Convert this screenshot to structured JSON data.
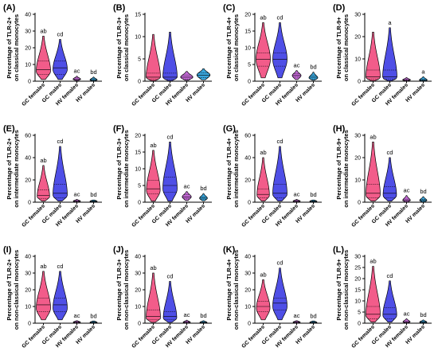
{
  "colors": {
    "GC females": "#f25c8a",
    "GC males": "#4f4fe6",
    "HV females": "#c46ad6",
    "HV males": "#3aa6dc"
  },
  "chart_data": [
    {
      "label": "(A)",
      "type": "violin",
      "ylabel_lines": [
        "Percentage of TLR-2+",
        "on classical monocytes"
      ],
      "categories": [
        "GC females",
        "GC males",
        "HV females",
        "HV males"
      ],
      "ylim": [
        0,
        40
      ],
      "yticks": [
        0,
        10,
        20,
        30,
        40
      ],
      "series": [
        {
          "category": "GC females",
          "min": 1,
          "q1": 4,
          "median": 7,
          "q3": 12,
          "max": 27,
          "mode": 6,
          "annotation": "ab"
        },
        {
          "category": "GC males",
          "min": 1,
          "q1": 4,
          "median": 8,
          "q3": 12,
          "max": 25,
          "mode": 7,
          "annotation": "cd"
        },
        {
          "category": "HV females",
          "min": 0.3,
          "q1": 0.7,
          "median": 1.2,
          "q3": 2,
          "max": 3,
          "mode": 1.2,
          "annotation": "ac"
        },
        {
          "category": "HV males",
          "min": 0.2,
          "q1": 0.5,
          "median": 0.9,
          "q3": 1.5,
          "max": 2.5,
          "mode": 0.8,
          "annotation": "bd"
        }
      ]
    },
    {
      "label": "(B)",
      "type": "violin",
      "ylabel_lines": [
        "Percentage of TLR-3+",
        "on classical monocytes"
      ],
      "categories": [
        "GC females",
        "GC males",
        "HV females",
        "HV males"
      ],
      "ylim": [
        0,
        15
      ],
      "yticks": [
        0,
        5,
        10,
        15
      ],
      "series": [
        {
          "category": "GC females",
          "min": 0.1,
          "q1": 0.4,
          "median": 0.9,
          "q3": 1.8,
          "max": 10.5,
          "mode": 0.8,
          "annotation": ""
        },
        {
          "category": "GC males",
          "min": 0.1,
          "q1": 0.4,
          "median": 0.9,
          "q3": 1.8,
          "max": 11,
          "mode": 0.8,
          "annotation": ""
        },
        {
          "category": "HV females",
          "min": 0.2,
          "q1": 0.5,
          "median": 0.9,
          "q3": 1.4,
          "max": 2.2,
          "mode": 0.9,
          "annotation": ""
        },
        {
          "category": "HV males",
          "min": 0.3,
          "q1": 0.8,
          "median": 1.3,
          "q3": 1.9,
          "max": 2.8,
          "mode": 1.4,
          "annotation": ""
        }
      ]
    },
    {
      "label": "(C)",
      "type": "violin",
      "ylabel_lines": [
        "Percentage of TLR-4+",
        "on classical monocytes"
      ],
      "categories": [
        "GC females",
        "GC males",
        "HV females",
        "HV males"
      ],
      "ylim": [
        0,
        20
      ],
      "yticks": [
        0,
        5,
        10,
        15,
        20
      ],
      "series": [
        {
          "category": "GC females",
          "min": 1,
          "q1": 4.5,
          "median": 6.5,
          "q3": 8.5,
          "max": 17.5,
          "mode": 6.5,
          "annotation": "ab"
        },
        {
          "category": "GC males",
          "min": 1,
          "q1": 4.5,
          "median": 6.5,
          "q3": 8.5,
          "max": 17.5,
          "mode": 6.5,
          "annotation": "cd"
        },
        {
          "category": "HV females",
          "min": 0.5,
          "q1": 1.2,
          "median": 1.7,
          "q3": 2.2,
          "max": 3.2,
          "mode": 1.7,
          "annotation": "ac"
        },
        {
          "category": "HV males",
          "min": 0.3,
          "q1": 0.7,
          "median": 1.2,
          "q3": 1.7,
          "max": 2.7,
          "mode": 1,
          "annotation": "bd"
        }
      ]
    },
    {
      "label": "(D)",
      "type": "violin",
      "ylabel_lines": [
        "Percentage of TLR-9+",
        "on classical monocytes"
      ],
      "categories": [
        "GC females",
        "GC males",
        "HV females",
        "HV males"
      ],
      "ylim": [
        0,
        30
      ],
      "yticks": [
        0,
        10,
        20,
        30
      ],
      "series": [
        {
          "category": "GC females",
          "min": 0.2,
          "q1": 1,
          "median": 2,
          "q3": 5,
          "max": 22,
          "mode": 1.5,
          "annotation": ""
        },
        {
          "category": "GC males",
          "min": 0.2,
          "q1": 1,
          "median": 2,
          "q3": 5,
          "max": 24,
          "mode": 1.5,
          "annotation": "a"
        },
        {
          "category": "HV females",
          "min": 0.1,
          "q1": 0.3,
          "median": 0.6,
          "q3": 1,
          "max": 1.6,
          "mode": 0.6,
          "annotation": ""
        },
        {
          "category": "HV males",
          "min": 0.1,
          "q1": 0.3,
          "median": 0.6,
          "q3": 1,
          "max": 2,
          "mode": 0.5,
          "annotation": "a"
        }
      ]
    },
    {
      "label": "(E)",
      "type": "violin",
      "ylabel_lines": [
        "Percentage of TLR-2+",
        "on intermediate monocytes"
      ],
      "categories": [
        "GC females",
        "GC males",
        "HV females",
        "HV males"
      ],
      "ylim": [
        0,
        60
      ],
      "yticks": [
        0,
        20,
        40,
        60
      ],
      "series": [
        {
          "category": "GC females",
          "min": 1,
          "q1": 3,
          "median": 6,
          "q3": 11,
          "max": 33,
          "mode": 5,
          "annotation": "ab"
        },
        {
          "category": "GC males",
          "min": 1,
          "q1": 4,
          "median": 8,
          "q3": 16,
          "max": 50,
          "mode": 6,
          "annotation": "cd"
        },
        {
          "category": "HV females",
          "min": 0.2,
          "q1": 0.5,
          "median": 1,
          "q3": 1.5,
          "max": 2.5,
          "mode": 1,
          "annotation": "ac"
        },
        {
          "category": "HV males",
          "min": 0.2,
          "q1": 0.5,
          "median": 0.8,
          "q3": 1.2,
          "max": 2,
          "mode": 0.8,
          "annotation": "bd"
        }
      ]
    },
    {
      "label": "(F)",
      "type": "violin",
      "ylabel_lines": [
        "Percentage of TLR-3+",
        "on intermediate monocytes"
      ],
      "categories": [
        "GC females",
        "GC males",
        "HV females",
        "HV males"
      ],
      "ylim": [
        0,
        20
      ],
      "yticks": [
        0,
        5,
        10,
        15,
        20
      ],
      "series": [
        {
          "category": "GC females",
          "min": 0.3,
          "q1": 2.5,
          "median": 4,
          "q3": 6.5,
          "max": 15.5,
          "mode": 3.5,
          "annotation": "ab"
        },
        {
          "category": "GC males",
          "min": 0.3,
          "q1": 3,
          "median": 5,
          "q3": 7.5,
          "max": 18,
          "mode": 4,
          "annotation": "cd"
        },
        {
          "category": "HV females",
          "min": 0.5,
          "q1": 1,
          "median": 1.6,
          "q3": 2.2,
          "max": 3.2,
          "mode": 1.6,
          "annotation": "ac"
        },
        {
          "category": "HV males",
          "min": 0.4,
          "q1": 0.8,
          "median": 1.2,
          "q3": 1.6,
          "max": 2.6,
          "mode": 1.2,
          "annotation": "bd"
        }
      ]
    },
    {
      "label": "(G)",
      "type": "violin",
      "ylabel_lines": [
        "Percentage of TLR-4+",
        "on intermediate monocytes"
      ],
      "categories": [
        "GC females",
        "GC males",
        "HV females",
        "HV males"
      ],
      "ylim": [
        0,
        60
      ],
      "yticks": [
        0,
        20,
        40,
        60
      ],
      "series": [
        {
          "category": "GC females",
          "min": 1,
          "q1": 4,
          "median": 7,
          "q3": 12,
          "max": 40,
          "mode": 6,
          "annotation": "ab"
        },
        {
          "category": "GC males",
          "min": 1,
          "q1": 4,
          "median": 8,
          "q3": 16,
          "max": 50,
          "mode": 7,
          "annotation": "cd"
        },
        {
          "category": "HV females",
          "min": 0.2,
          "q1": 0.6,
          "median": 1,
          "q3": 1.6,
          "max": 2.5,
          "mode": 1,
          "annotation": "ac"
        },
        {
          "category": "HV males",
          "min": 0.2,
          "q1": 0.5,
          "median": 0.8,
          "q3": 1.2,
          "max": 2,
          "mode": 0.8,
          "annotation": "bd"
        }
      ]
    },
    {
      "label": "(H)",
      "type": "violin",
      "ylabel_lines": [
        "Percentage of TLR-9+",
        "on intermediate monocytes"
      ],
      "categories": [
        "GC females",
        "GC males",
        "HV females",
        "HV males"
      ],
      "ylim": [
        0,
        30
      ],
      "yticks": [
        0,
        10,
        20,
        30
      ],
      "series": [
        {
          "category": "GC females",
          "min": 0.5,
          "q1": 2,
          "median": 4,
          "q3": 8,
          "max": 27,
          "mode": 3,
          "annotation": "ab"
        },
        {
          "category": "GC males",
          "min": 0.5,
          "q1": 2,
          "median": 4,
          "q3": 7,
          "max": 20,
          "mode": 3,
          "annotation": "cd"
        },
        {
          "category": "HV females",
          "min": 0.1,
          "q1": 0.4,
          "median": 0.8,
          "q3": 1.4,
          "max": 3,
          "mode": 0.8,
          "annotation": "ac"
        },
        {
          "category": "HV males",
          "min": 0.1,
          "q1": 0.4,
          "median": 0.8,
          "q3": 1.2,
          "max": 2.5,
          "mode": 0.8,
          "annotation": "bd"
        }
      ]
    },
    {
      "label": "(I)",
      "type": "violin",
      "ylabel_lines": [
        "Percentage of TLR-2+",
        "on non-classical monocytes"
      ],
      "categories": [
        "GC females",
        "GC males",
        "HV females",
        "HV males"
      ],
      "ylim": [
        0,
        40
      ],
      "yticks": [
        0,
        10,
        20,
        30,
        40
      ],
      "series": [
        {
          "category": "GC females",
          "min": 2,
          "q1": 7,
          "median": 11,
          "q3": 15,
          "max": 31,
          "mode": 9,
          "annotation": "ab"
        },
        {
          "category": "GC males",
          "min": 2,
          "q1": 7,
          "median": 11,
          "q3": 15,
          "max": 31,
          "mode": 9,
          "annotation": "cd"
        },
        {
          "category": "HV females",
          "min": 0.1,
          "q1": 0.3,
          "median": 0.6,
          "q3": 0.9,
          "max": 1.5,
          "mode": 0.6,
          "annotation": "ac"
        },
        {
          "category": "HV males",
          "min": 0.1,
          "q1": 0.3,
          "median": 0.5,
          "q3": 0.8,
          "max": 1.3,
          "mode": 0.5,
          "annotation": "bd"
        }
      ]
    },
    {
      "label": "(J)",
      "type": "violin",
      "ylabel_lines": [
        "Percentage of TLR-3+",
        "on non-classical monocytes"
      ],
      "categories": [
        "GC females",
        "GC males",
        "HV females",
        "HV males"
      ],
      "ylim": [
        0,
        40
      ],
      "yticks": [
        0,
        10,
        20,
        30,
        40
      ],
      "series": [
        {
          "category": "GC females",
          "min": 0.5,
          "q1": 2,
          "median": 4,
          "q3": 8,
          "max": 30,
          "mode": 3,
          "annotation": "ab"
        },
        {
          "category": "GC males",
          "min": 0.5,
          "q1": 2,
          "median": 4,
          "q3": 7,
          "max": 25,
          "mode": 3,
          "annotation": "cd"
        },
        {
          "category": "HV females",
          "min": 0.1,
          "q1": 0.3,
          "median": 0.6,
          "q3": 1,
          "max": 1.8,
          "mode": 0.6,
          "annotation": "ac"
        },
        {
          "category": "HV males",
          "min": 0.1,
          "q1": 0.3,
          "median": 0.5,
          "q3": 0.8,
          "max": 1.5,
          "mode": 0.5,
          "annotation": "bd"
        }
      ]
    },
    {
      "label": "(K)",
      "type": "violin",
      "ylabel_lines": [
        "Percentage of TLR-4+",
        "on non-classical monocytes"
      ],
      "categories": [
        "GC females",
        "GC males",
        "HV females",
        "HV males"
      ],
      "ylim": [
        0,
        40
      ],
      "yticks": [
        0,
        10,
        20,
        30,
        40
      ],
      "series": [
        {
          "category": "GC females",
          "min": 2,
          "q1": 7,
          "median": 10,
          "q3": 13,
          "max": 26,
          "mode": 9,
          "annotation": "ab"
        },
        {
          "category": "GC males",
          "min": 2,
          "q1": 8,
          "median": 12,
          "q3": 15,
          "max": 33,
          "mode": 10,
          "annotation": "cd"
        },
        {
          "category": "HV females",
          "min": 0.1,
          "q1": 0.3,
          "median": 0.6,
          "q3": 0.9,
          "max": 1.5,
          "mode": 0.6,
          "annotation": "ac"
        },
        {
          "category": "HV males",
          "min": 0.1,
          "q1": 0.3,
          "median": 0.5,
          "q3": 0.8,
          "max": 1.3,
          "mode": 0.5,
          "annotation": "bd"
        }
      ]
    },
    {
      "label": "(L)",
      "type": "violin",
      "ylabel_lines": [
        "Percentage of TLR-9+",
        "on non-classical monocytes"
      ],
      "categories": [
        "GC females",
        "GC males",
        "HV females",
        "HV males"
      ],
      "ylim": [
        0,
        30
      ],
      "yticks": [
        0,
        5,
        10,
        15,
        20,
        25,
        30
      ],
      "series": [
        {
          "category": "GC females",
          "min": 0.5,
          "q1": 2,
          "median": 4,
          "q3": 7.5,
          "max": 25.5,
          "mode": 3.5,
          "annotation": "ab"
        },
        {
          "category": "GC males",
          "min": 0.5,
          "q1": 2,
          "median": 4,
          "q3": 7,
          "max": 19,
          "mode": 3.5,
          "annotation": "cd"
        },
        {
          "category": "HV females",
          "min": 0.1,
          "q1": 0.3,
          "median": 0.6,
          "q3": 1,
          "max": 2,
          "mode": 0.6,
          "annotation": "ac"
        },
        {
          "category": "HV males",
          "min": 0.1,
          "q1": 0.3,
          "median": 0.5,
          "q3": 0.8,
          "max": 1.5,
          "mode": 0.5,
          "annotation": "bd"
        }
      ]
    }
  ]
}
